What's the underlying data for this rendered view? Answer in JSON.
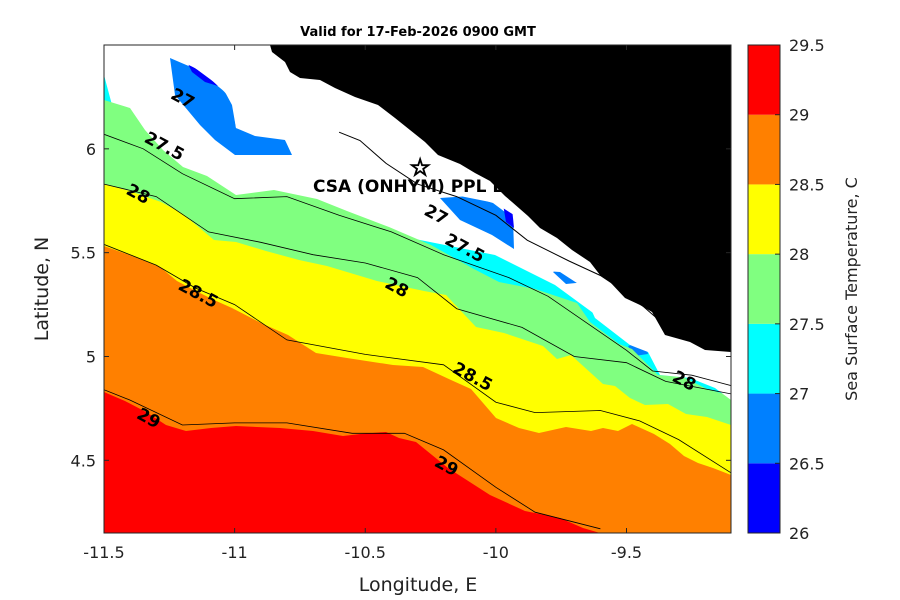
{
  "chart_data": {
    "type": "contour",
    "title": "Valid for 17-Feb-2026 0900 GMT",
    "xlabel": "Longitude, E",
    "ylabel": "Latitude, N",
    "xlim": [
      -11.5,
      -9.1
    ],
    "ylim": [
      4.15,
      6.5
    ],
    "xticks": [
      -11.5,
      -11,
      -10.5,
      -10,
      -9.5
    ],
    "xtick_labels": [
      "-11.5",
      "-11",
      "-10.5",
      "-10",
      "-9.5"
    ],
    "yticks": [
      4.5,
      5,
      5.5,
      6
    ],
    "ytick_labels": [
      "4.5",
      "5",
      "5.5",
      "6"
    ],
    "colorbar": {
      "label": "Sea Surface Temperature, C",
      "levels": [
        26,
        26.5,
        27,
        27.5,
        28,
        28.5,
        29,
        29.5
      ],
      "level_labels": [
        "26",
        "26.5",
        "27",
        "27.5",
        "28",
        "28.5",
        "29",
        "29.5"
      ],
      "colors": [
        "#0000ff",
        "#0080ff",
        "#00ffff",
        "#80ff80",
        "#ffff00",
        "#ff8000",
        "#ff0000"
      ]
    },
    "contour_lines": [
      {
        "level": 29,
        "points": [
          [
            -11.5,
            4.84
          ],
          [
            -11.4,
            4.79
          ],
          [
            -11.2,
            4.67
          ],
          [
            -11.0,
            4.68
          ],
          [
            -10.8,
            4.68
          ],
          [
            -10.55,
            4.63
          ],
          [
            -10.35,
            4.63
          ],
          [
            -10.2,
            4.55
          ],
          [
            -10.0,
            4.37
          ],
          [
            -9.85,
            4.25
          ],
          [
            -9.6,
            4.17
          ]
        ]
      },
      {
        "level": 28.5,
        "points": [
          [
            -11.5,
            5.54
          ],
          [
            -11.3,
            5.44
          ],
          [
            -11.15,
            5.33
          ],
          [
            -11.0,
            5.25
          ],
          [
            -10.8,
            5.08
          ],
          [
            -10.5,
            5.01
          ],
          [
            -10.2,
            4.96
          ],
          [
            -10.0,
            4.78
          ],
          [
            -9.85,
            4.73
          ],
          [
            -9.6,
            4.74
          ],
          [
            -9.45,
            4.69
          ],
          [
            -9.3,
            4.6
          ],
          [
            -9.1,
            4.44
          ]
        ]
      },
      {
        "level": 28,
        "points": [
          [
            -11.5,
            5.83
          ],
          [
            -11.3,
            5.77
          ],
          [
            -11.1,
            5.6
          ],
          [
            -10.9,
            5.55
          ],
          [
            -10.7,
            5.49
          ],
          [
            -10.5,
            5.45
          ],
          [
            -10.3,
            5.38
          ],
          [
            -10.15,
            5.23
          ],
          [
            -9.9,
            5.14
          ],
          [
            -9.7,
            5.0
          ],
          [
            -9.5,
            4.97
          ],
          [
            -9.35,
            4.88
          ],
          [
            -9.1,
            4.82
          ]
        ]
      },
      {
        "level": 27.5,
        "points": [
          [
            -11.5,
            6.07
          ],
          [
            -11.35,
            6.0
          ],
          [
            -11.2,
            5.88
          ],
          [
            -11.0,
            5.76
          ],
          [
            -10.8,
            5.77
          ],
          [
            -10.6,
            5.68
          ],
          [
            -10.4,
            5.6
          ],
          [
            -10.2,
            5.49
          ],
          [
            -9.95,
            5.38
          ],
          [
            -9.8,
            5.29
          ],
          [
            -9.65,
            5.16
          ],
          [
            -9.5,
            5.03
          ],
          [
            -9.4,
            4.93
          ],
          [
            -9.25,
            4.91
          ],
          [
            -9.1,
            4.86
          ]
        ]
      }
    ],
    "coastline": [
      [
        -10.6,
        6.08
      ],
      [
        -10.52,
        6.04
      ],
      [
        -10.42,
        5.93
      ],
      [
        -10.3,
        5.83
      ],
      [
        -10.15,
        5.77
      ],
      [
        -10.0,
        5.68
      ],
      [
        -9.88,
        5.56
      ],
      [
        -9.72,
        5.46
      ],
      [
        -9.6,
        5.39
      ],
      [
        -9.48,
        5.29
      ],
      [
        -9.38,
        5.18
      ],
      [
        -9.26,
        5.11
      ],
      [
        -9.1,
        5.04
      ]
    ],
    "contour_labels": [
      {
        "text": "29",
        "lon": -11.33,
        "lat": 4.7
      },
      {
        "text": "29",
        "lon": -10.19,
        "lat": 4.47
      },
      {
        "text": "28.5",
        "lon": -11.14,
        "lat": 5.3
      },
      {
        "text": "28.5",
        "lon": -10.09,
        "lat": 4.9
      },
      {
        "text": "28",
        "lon": -11.37,
        "lat": 5.78
      },
      {
        "text": "28",
        "lon": -10.38,
        "lat": 5.33
      },
      {
        "text": "28",
        "lon": -9.28,
        "lat": 4.88
      },
      {
        "text": "27.5",
        "lon": -11.27,
        "lat": 6.01
      },
      {
        "text": "27.5",
        "lon": -10.12,
        "lat": 5.52
      },
      {
        "text": "27",
        "lon": -11.2,
        "lat": 6.24
      },
      {
        "text": "27",
        "lon": -10.23,
        "lat": 5.68
      }
    ],
    "annotations": [
      {
        "text": "CSA (ONHYM) PPL ED.",
        "lon": -10.7,
        "lat": 5.82,
        "marker": "star",
        "marker_lon": -10.29,
        "marker_lat": 5.91
      }
    ]
  }
}
